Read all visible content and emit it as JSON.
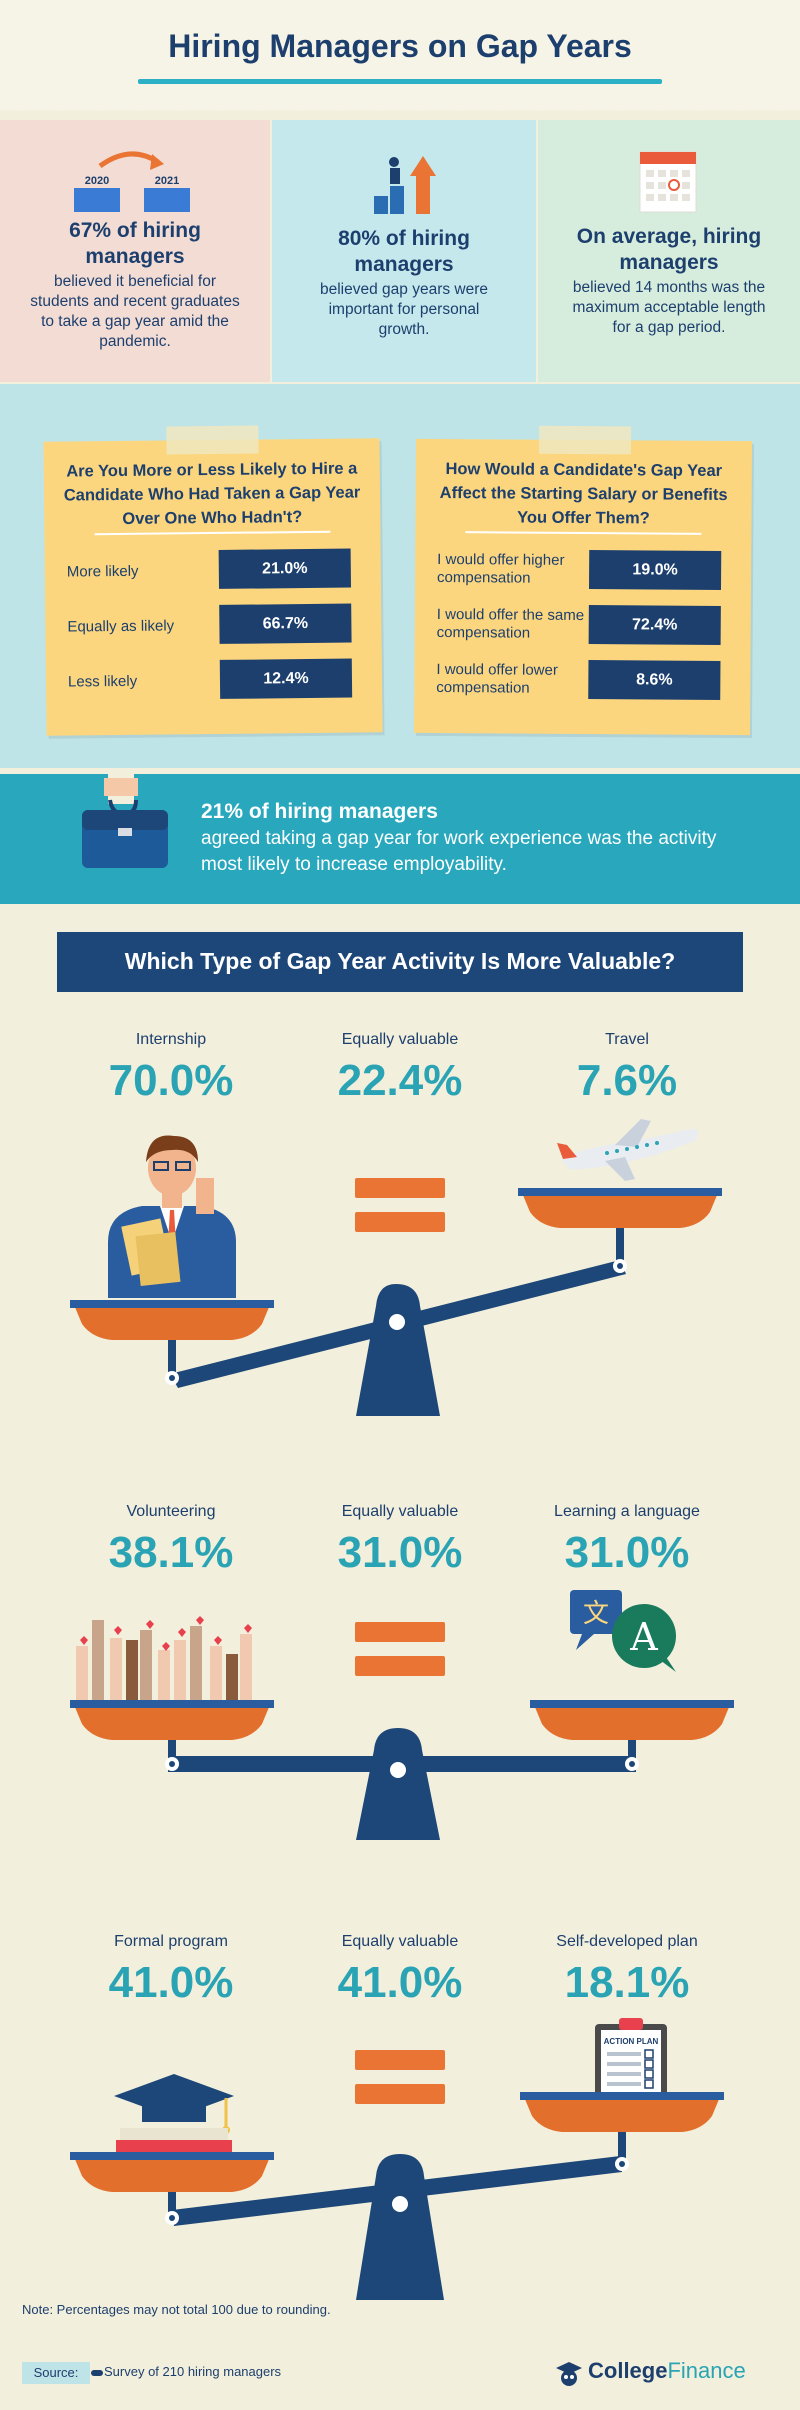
{
  "header": {
    "title": "Hiring Managers on Gap Years"
  },
  "stats": [
    {
      "big": "67% of hiring managers",
      "small": "believed it beneficial for students and recent graduates to take a gap year amid the pandemic.",
      "year_from": "2020",
      "year_to": "2021"
    },
    {
      "big": "80% of hiring managers",
      "small": "believed gap years were important for personal growth."
    },
    {
      "big": "On average, hiring managers",
      "small": "believed 14 months was the maximum acceptable length for a gap period."
    }
  ],
  "survey": {
    "hire": {
      "title": "Are You More or Less Likely to Hire a Candidate Who Had Taken a Gap Year Over One Who Hadn't?",
      "rows": [
        {
          "label": "More likely",
          "value": "21.0%"
        },
        {
          "label": "Equally as likely",
          "value": "66.7%"
        },
        {
          "label": "Less likely",
          "value": "12.4%"
        }
      ]
    },
    "salary": {
      "title": "How Would a Candidate's Gap Year Affect the Starting Salary or Benefits You Offer Them?",
      "rows": [
        {
          "label": "I would offer higher compensation",
          "value": "19.0%"
        },
        {
          "label": "I would offer the same compensation",
          "value": "72.4%"
        },
        {
          "label": "I would offer lower compensation",
          "value": "8.6%"
        }
      ]
    }
  },
  "band": {
    "big": "21% of hiring managers",
    "small": "agreed taking a gap year for work experience was the activity most likely to increase employability."
  },
  "activities": {
    "title": "Which Type of Gap Year Activity Is More Valuable?",
    "groups": [
      {
        "left_label": "Internship",
        "left_value": "70.0%",
        "mid_label": "Equally valuable",
        "mid_value": "22.4%",
        "right_label": "Travel",
        "right_value": "7.6%"
      },
      {
        "left_label": "Volunteering",
        "left_value": "38.1%",
        "mid_label": "Equally valuable",
        "mid_value": "31.0%",
        "right_label": "Learning a language",
        "right_value": "31.0%"
      },
      {
        "left_label": "Formal program",
        "left_value": "41.0%",
        "mid_label": "Equally valuable",
        "mid_value": "41.0%",
        "right_label": "Self-developed plan",
        "right_value": "18.1%"
      }
    ],
    "action_plan_text": "ACTION PLAN"
  },
  "note": "Note: Percentages may not total 100 due to rounding.",
  "footer": {
    "source_label": "Source:",
    "source_text": "Survey of 210 hiring managers",
    "logo_a": "College",
    "logo_b": "Finance"
  },
  "colors": {
    "navy": "#1d3f6e",
    "teal": "#2aa4b4",
    "orange": "#e97433",
    "yellow": "#fbd67e"
  }
}
